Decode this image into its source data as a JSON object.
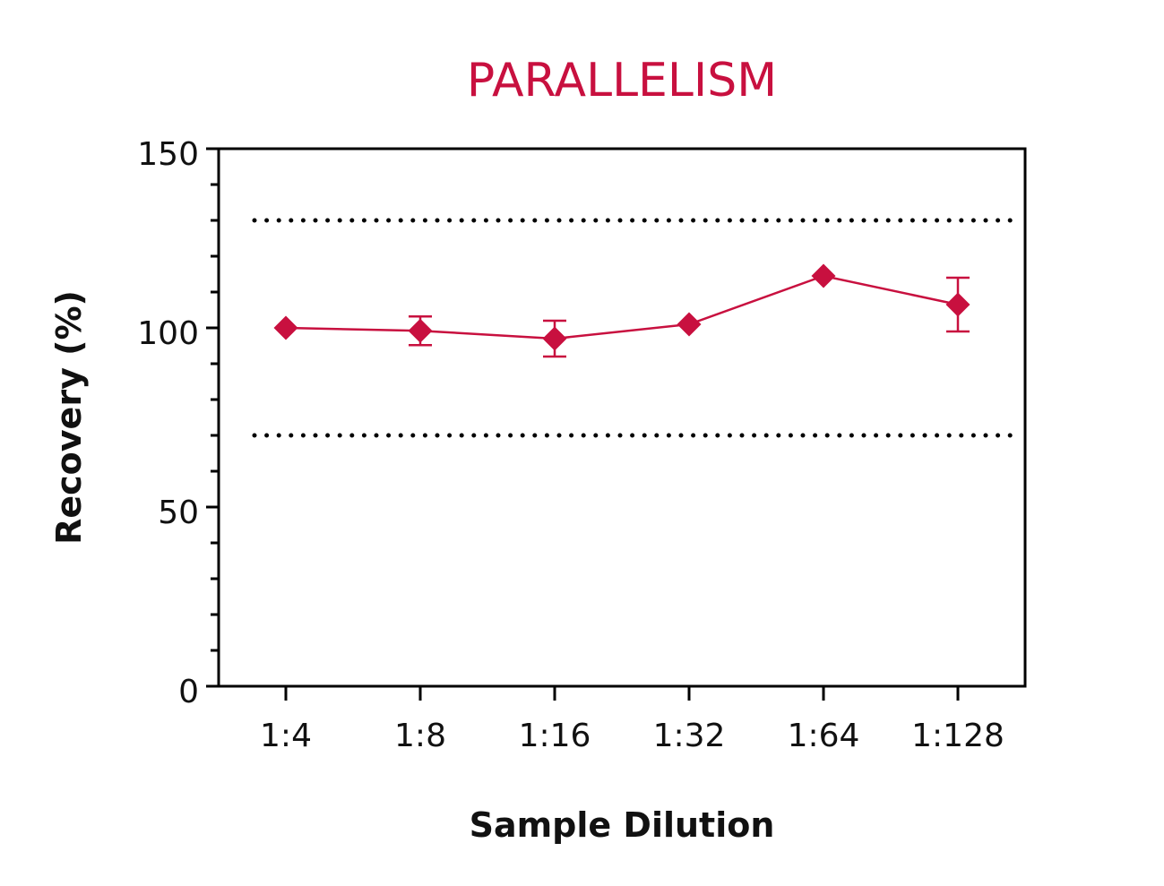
{
  "chart_data": {
    "type": "line",
    "title": "PARALLELISM",
    "xlabel": "Sample Dilution",
    "ylabel": "Recovery (%)",
    "categories": [
      "1:4",
      "1:8",
      "1:16",
      "1:32",
      "1:64",
      "1:128"
    ],
    "series": [
      {
        "values": [
          100,
          99.2,
          97,
          101,
          114.5,
          106.5
        ],
        "error": [
          0,
          4,
          5,
          0,
          0,
          7.5
        ]
      }
    ],
    "reference_lines": [
      130,
      70
    ],
    "ylim": [
      0,
      150
    ],
    "yticks": [
      0,
      50,
      100,
      150
    ],
    "y_minor_step": 10,
    "grid": false,
    "legend": "none",
    "colors": {
      "series": "#c8103f",
      "title": "#c8103f",
      "axis": "#000000",
      "reference": "#000000"
    }
  }
}
